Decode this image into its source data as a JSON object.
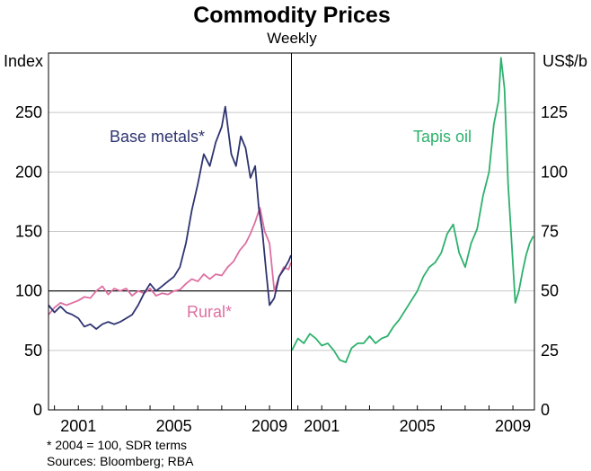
{
  "chart_data": [
    {
      "type": "line",
      "title": "Commodity Prices",
      "subtitle": "Weekly",
      "panel": "left",
      "ylabel": "Index",
      "ylim": [
        0,
        300
      ],
      "yticks": [
        0,
        50,
        100,
        150,
        200,
        250
      ],
      "xlim": [
        1999.75,
        2009.9
      ],
      "xticks": [
        2001,
        2005,
        2009
      ],
      "reference_line": 100,
      "series": [
        {
          "name": "Base metals*",
          "color": "#2e3470",
          "x": [
            1999.75,
            2000.0,
            2000.25,
            2000.5,
            2000.75,
            2001.0,
            2001.25,
            2001.5,
            2001.75,
            2002.0,
            2002.25,
            2002.5,
            2002.75,
            2003.0,
            2003.25,
            2003.5,
            2003.75,
            2004.0,
            2004.25,
            2004.5,
            2004.75,
            2005.0,
            2005.25,
            2005.5,
            2005.75,
            2006.0,
            2006.25,
            2006.5,
            2006.75,
            2007.0,
            2007.15,
            2007.4,
            2007.6,
            2007.8,
            2008.0,
            2008.2,
            2008.4,
            2008.55,
            2008.7,
            2008.85,
            2009.0,
            2009.2,
            2009.4,
            2009.6,
            2009.8,
            2009.9
          ],
          "values": [
            88,
            82,
            87,
            82,
            80,
            77,
            70,
            72,
            68,
            72,
            74,
            72,
            74,
            77,
            80,
            88,
            98,
            106,
            100,
            104,
            108,
            112,
            120,
            140,
            168,
            190,
            215,
            205,
            225,
            238,
            255,
            215,
            205,
            230,
            220,
            195,
            205,
            170,
            150,
            118,
            88,
            94,
            112,
            118,
            125,
            130
          ]
        },
        {
          "name": "Rural*",
          "color": "#de6fa1",
          "x": [
            1999.75,
            2000.0,
            2000.25,
            2000.5,
            2000.75,
            2001.0,
            2001.25,
            2001.5,
            2001.75,
            2002.0,
            2002.25,
            2002.5,
            2002.75,
            2003.0,
            2003.25,
            2003.5,
            2003.75,
            2004.0,
            2004.25,
            2004.5,
            2004.75,
            2005.0,
            2005.25,
            2005.5,
            2005.75,
            2006.0,
            2006.25,
            2006.5,
            2006.75,
            2007.0,
            2007.25,
            2007.5,
            2007.75,
            2008.0,
            2008.2,
            2008.4,
            2008.6,
            2008.8,
            2009.0,
            2009.2,
            2009.4,
            2009.6,
            2009.8,
            2009.9
          ],
          "values": [
            80,
            86,
            90,
            88,
            90,
            92,
            95,
            94,
            100,
            104,
            97,
            102,
            100,
            102,
            96,
            100,
            98,
            102,
            96,
            98,
            97,
            100,
            101,
            106,
            110,
            108,
            114,
            110,
            114,
            113,
            120,
            125,
            134,
            140,
            148,
            158,
            170,
            150,
            140,
            100,
            112,
            120,
            118,
            124
          ]
        }
      ],
      "annotations": [
        "Base metals*",
        "Rural*"
      ]
    },
    {
      "type": "line",
      "panel": "right",
      "ylabel": "US$/b",
      "ylim": [
        0,
        150
      ],
      "yticks": [
        0,
        25,
        50,
        75,
        100,
        125
      ],
      "xlim": [
        1999.75,
        2009.9
      ],
      "xticks": [
        2001,
        2005,
        2009
      ],
      "series": [
        {
          "name": "Tapis oil",
          "color": "#2db16c",
          "x": [
            1999.75,
            2000.0,
            2000.25,
            2000.5,
            2000.75,
            2001.0,
            2001.25,
            2001.5,
            2001.75,
            2002.0,
            2002.25,
            2002.5,
            2002.75,
            2003.0,
            2003.25,
            2003.5,
            2003.75,
            2004.0,
            2004.25,
            2004.5,
            2004.75,
            2005.0,
            2005.25,
            2005.5,
            2005.75,
            2006.0,
            2006.25,
            2006.5,
            2006.75,
            2007.0,
            2007.25,
            2007.5,
            2007.75,
            2008.0,
            2008.2,
            2008.4,
            2008.5,
            2008.65,
            2008.8,
            2008.95,
            2009.1,
            2009.25,
            2009.4,
            2009.55,
            2009.7,
            2009.85
          ],
          "values": [
            25,
            30,
            28,
            32,
            30,
            27,
            28,
            25,
            21,
            20,
            26,
            28,
            28,
            31,
            28,
            30,
            31,
            35,
            38,
            42,
            46,
            50,
            56,
            60,
            62,
            66,
            74,
            78,
            66,
            60,
            70,
            76,
            90,
            100,
            120,
            130,
            148,
            135,
            95,
            70,
            45,
            50,
            58,
            65,
            70,
            73
          ]
        }
      ],
      "annotations": [
        "Tapis oil"
      ]
    }
  ],
  "footnote": "*    2004 = 100, SDR terms",
  "sources": "Sources: Bloomberg; RBA"
}
